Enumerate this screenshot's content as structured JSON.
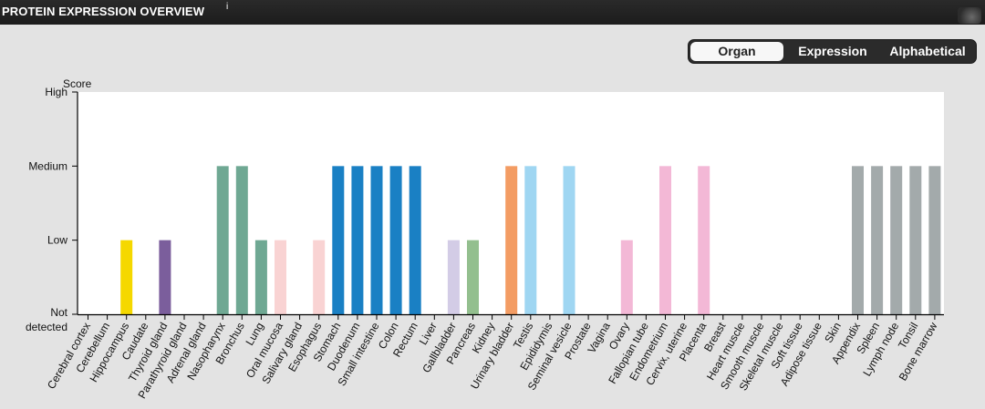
{
  "header": {
    "title": "PROTEIN EXPRESSION OVERVIEW",
    "info_icon": "i"
  },
  "toggle": {
    "options": [
      "Organ",
      "Expression",
      "Alphabetical"
    ],
    "active": "Organ"
  },
  "chart_data": {
    "type": "bar",
    "ylabel": "Score",
    "y_levels": [
      "Not detected",
      "Low",
      "Medium",
      "High"
    ],
    "ylim": [
      0,
      3
    ],
    "grid": false,
    "categories": [
      "Cerebral cortex",
      "Cerebellum",
      "Hippocampus",
      "Caudate",
      "Thyroid gland",
      "Parathyroid gland",
      "Adrenal gland",
      "Nasopharynx",
      "Bronchus",
      "Lung",
      "Oral mucosa",
      "Salivary gland",
      "Esophagus",
      "Stomach",
      "Duodenum",
      "Small intestine",
      "Colon",
      "Rectum",
      "Liver",
      "Gallbladder",
      "Pancreas",
      "Kidney",
      "Urinary bladder",
      "Testis",
      "Epididymis",
      "Seminal vesicle",
      "Prostate",
      "Vagina",
      "Ovary",
      "Fallopian tube",
      "Endometrium",
      "Cervix, uterine",
      "Placenta",
      "Breast",
      "Heart muscle",
      "Smooth muscle",
      "Skeletal muscle",
      "Soft tissue",
      "Adipose tissue",
      "Skin",
      "Appendix",
      "Spleen",
      "Lymph node",
      "Tonsil",
      "Bone marrow"
    ],
    "values": [
      0,
      0,
      1,
      0,
      1,
      0,
      0,
      2,
      2,
      1,
      1,
      0,
      1,
      2,
      2,
      2,
      2,
      2,
      0,
      1,
      1,
      0,
      2,
      2,
      0,
      2,
      0,
      0,
      1,
      0,
      2,
      0,
      2,
      0,
      0,
      0,
      0,
      0,
      0,
      0,
      2,
      2,
      2,
      2,
      2
    ],
    "colors": [
      "#f5d800",
      "#f5d800",
      "#f5d800",
      "#f5d800",
      "#7b5e9c",
      "#7b5e9c",
      "#7b5e9c",
      "#6fa893",
      "#6fa893",
      "#6fa893",
      "#f9d3d3",
      "#f9d3d3",
      "#f9d3d3",
      "#1a80c4",
      "#1a80c4",
      "#1a80c4",
      "#1a80c4",
      "#1a80c4",
      "#d3cce6",
      "#d3cce6",
      "#93bf8e",
      "#f39c63",
      "#f39c63",
      "#9fd6f2",
      "#9fd6f2",
      "#9fd6f2",
      "#9fd6f2",
      "#f3b8d6",
      "#f3b8d6",
      "#f3b8d6",
      "#f3b8d6",
      "#f3b8d6",
      "#f3b8d6",
      "#f3b8d6",
      "#a3aaab",
      "#a3aaab",
      "#a3aaab",
      "#a3aaab",
      "#a3aaab",
      "#a3aaab",
      "#a3aaab",
      "#a3aaab",
      "#a3aaab",
      "#a3aaab",
      "#a3aaab"
    ]
  }
}
